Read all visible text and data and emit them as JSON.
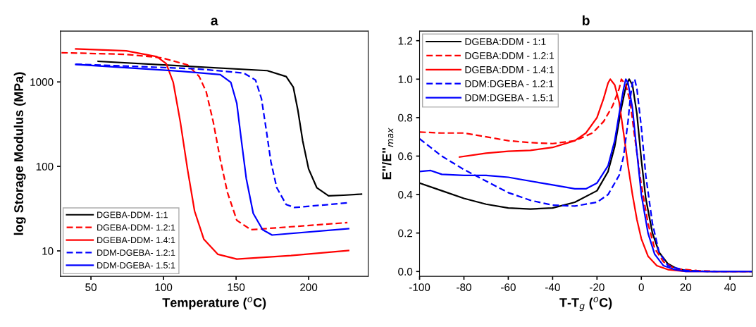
{
  "chart_data": [
    {
      "type": "line",
      "title": "a",
      "xlabel": "Temperature ($^{o}$C)",
      "ylabel": "log Storage Modulus (MPa)",
      "log": "y",
      "xlim": [
        29,
        241
      ],
      "ylim": [
        5,
        4000
      ],
      "xticks": [
        50,
        100,
        150,
        200
      ],
      "yticks": [
        10,
        100,
        1000
      ],
      "legend": "bottom left",
      "grid": false,
      "series": [
        {
          "name": "DGEBA-DDM- 1:1",
          "color": "#000000",
          "line_style": "solid",
          "x": [
            55,
            171.5,
            184.5,
            189.4,
            192.6,
            195.9,
            200,
            205.6,
            213.7,
            224,
            236.4
          ],
          "values": [
            1754,
            1360,
            1158,
            869,
            459,
            200,
            93,
            56,
            44.8,
            45.6,
            47
          ]
        },
        {
          "name": "DGEBA-DDM- 1.2:1",
          "color": "#ff0000",
          "line_style": "dashed",
          "x": [
            29.7,
            74.3,
            98.6,
            116.5,
            124.6,
            129.4,
            134.3,
            139.1,
            144,
            150.5,
            160.2,
            187.8,
            226.7
          ],
          "values": [
            2218,
            2120,
            1930,
            1593,
            1158,
            765,
            334,
            121,
            49.4,
            23,
            17.8,
            19.3,
            21.6
          ]
        },
        {
          "name": "DGEBA-DDM- 1.4:1",
          "color": "#ff0000",
          "line_style": "solid",
          "x": [
            39.5,
            74.3,
            95.4,
            101.9,
            106.7,
            111.6,
            116.5,
            121.4,
            127.8,
            137.5,
            150.5,
            187.8,
            227.5
          ],
          "values": [
            2457,
            2335,
            1990,
            1645,
            987,
            334,
            93,
            29.6,
            13.7,
            9.1,
            8.0,
            8.8,
            10.1
          ]
        },
        {
          "name": "DDM-DGEBA- 1.2:1",
          "color": "#0000ff",
          "line_style": "dashed",
          "x": [
            39.5,
            122.9,
            155.3,
            163.4,
            167.5,
            170.7,
            174,
            178,
            184.5,
            190.2,
            226.7
          ],
          "values": [
            1623,
            1429,
            1274,
            1052,
            632,
            276,
            113,
            56,
            35.4,
            32.6,
            37
          ]
        },
        {
          "name": "DDM-DGEBA- 1.5:1",
          "color": "#0000ff",
          "line_style": "solid",
          "x": [
            39.5,
            106.7,
            139.1,
            146.4,
            150.5,
            153.7,
            157,
            161.8,
            168.3,
            174.8,
            227.5
          ],
          "values": [
            1613,
            1359,
            1219,
            987,
            556,
            200,
            72,
            27.8,
            17.8,
            15.4,
            18.3
          ]
        }
      ]
    },
    {
      "type": "line",
      "title": "b",
      "xlabel": "T-T$_{g}$ ($^{o}$C)",
      "ylabel": "E''/E''$_{max}$",
      "xlim": [
        -100,
        50
      ],
      "ylim": [
        -0.025,
        1.25
      ],
      "xticks": [
        -100,
        -80,
        -60,
        -40,
        -20,
        0,
        20,
        40
      ],
      "yticks": [
        {
          "value": 0,
          "label": "0.0"
        },
        0.2,
        0.4,
        0.6,
        0.8,
        {
          "value": 1,
          "label": "1.0"
        },
        1.2
      ],
      "legend": "top left",
      "grid": false,
      "series": [
        {
          "name": "DGEBA:DDM - 1:1",
          "color": "#000000",
          "line_style": "solid",
          "x": [
            -100,
            -90,
            -80,
            -70,
            -60,
            -50,
            -40,
            -30,
            -20,
            -15,
            -12,
            -9,
            -7,
            -5.5,
            -4,
            -2,
            0,
            2,
            5,
            8,
            12,
            16,
            20,
            30,
            50
          ],
          "values": [
            0.46,
            0.42,
            0.38,
            0.35,
            0.33,
            0.325,
            0.33,
            0.36,
            0.42,
            0.52,
            0.65,
            0.85,
            0.96,
            1.0,
            0.97,
            0.82,
            0.58,
            0.38,
            0.2,
            0.1,
            0.04,
            0.015,
            0.005,
            0,
            0
          ]
        },
        {
          "name": "DGEBA:DDM - 1.2:1",
          "color": "#ff0000",
          "line_style": "dashed",
          "x": [
            -100,
            -90,
            -80,
            -70,
            -60,
            -50,
            -40,
            -30,
            -22,
            -17,
            -13,
            -10,
            -9,
            -7,
            -5,
            -3,
            0,
            3,
            6,
            10,
            15,
            25,
            35,
            50
          ],
          "values": [
            0.725,
            0.72,
            0.72,
            0.7,
            0.68,
            0.67,
            0.665,
            0.68,
            0.72,
            0.78,
            0.86,
            0.95,
            1.0,
            0.97,
            0.88,
            0.7,
            0.45,
            0.25,
            0.12,
            0.05,
            0.015,
            0.005,
            0,
            0
          ]
        },
        {
          "name": "DGEBA:DDM - 1.4:1",
          "color": "#ff0000",
          "line_style": "solid",
          "x": [
            -82,
            -70,
            -60,
            -50,
            -40,
            -30,
            -25,
            -20,
            -17,
            -15,
            -14,
            -12,
            -10,
            -8,
            -6,
            -4,
            -2,
            0,
            3,
            7,
            12,
            20,
            50
          ],
          "values": [
            0.595,
            0.615,
            0.625,
            0.63,
            0.645,
            0.68,
            0.72,
            0.8,
            0.9,
            0.98,
            1.0,
            0.97,
            0.88,
            0.72,
            0.55,
            0.4,
            0.27,
            0.17,
            0.08,
            0.03,
            0.01,
            0,
            0
          ]
        },
        {
          "name": "DDM:DGEBA - 1.2:1",
          "color": "#0000ff",
          "line_style": "dashed",
          "x": [
            -100,
            -90,
            -80,
            -70,
            -60,
            -50,
            -40,
            -30,
            -20,
            -15,
            -10,
            -8,
            -6,
            -5,
            -4,
            -3,
            -2,
            0,
            2,
            5,
            8,
            12,
            20,
            30,
            50
          ],
          "values": [
            0.69,
            0.6,
            0.53,
            0.47,
            0.41,
            0.37,
            0.345,
            0.34,
            0.36,
            0.4,
            0.5,
            0.6,
            0.78,
            0.9,
            0.98,
            1.0,
            0.95,
            0.75,
            0.5,
            0.25,
            0.1,
            0.03,
            0.005,
            0,
            0
          ]
        },
        {
          "name": "DDM:DGEBA - 1.5:1",
          "color": "#0000ff",
          "line_style": "solid",
          "x": [
            -100,
            -95,
            -90,
            -80,
            -70,
            -60,
            -50,
            -40,
            -30,
            -25,
            -20,
            -15,
            -12,
            -10,
            -8,
            -7,
            -6,
            -4,
            -2,
            0,
            3,
            6,
            10,
            15,
            20,
            50
          ],
          "values": [
            0.52,
            0.525,
            0.505,
            0.5,
            0.5,
            0.49,
            0.47,
            0.45,
            0.43,
            0.43,
            0.46,
            0.55,
            0.68,
            0.82,
            0.95,
            1.0,
            0.98,
            0.85,
            0.62,
            0.4,
            0.2,
            0.09,
            0.03,
            0.01,
            0,
            0
          ]
        }
      ]
    }
  ]
}
